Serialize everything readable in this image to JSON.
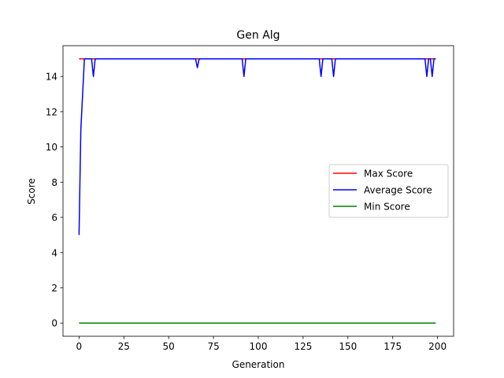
{
  "chart_data": {
    "type": "line",
    "title": "Gen Alg",
    "xlabel": "Generation",
    "ylabel": "Score",
    "xlim": [
      -8.95,
      208.95
    ],
    "ylim": [
      -0.75,
      15.75
    ],
    "xticks": [
      0,
      25,
      50,
      75,
      100,
      125,
      150,
      175,
      200
    ],
    "yticks": [
      0,
      2,
      4,
      6,
      8,
      10,
      12,
      14
    ],
    "grid": false,
    "legend_position": "center-right",
    "series": [
      {
        "name": "Max Score",
        "color": "#ff0000",
        "points": [
          [
            0,
            15
          ],
          [
            199,
            15
          ]
        ]
      },
      {
        "name": "Average Score",
        "color": "#0000ff",
        "points": [
          [
            0,
            5
          ],
          [
            1,
            11
          ],
          [
            2,
            13
          ],
          [
            3,
            15
          ],
          [
            7,
            15
          ],
          [
            8,
            14
          ],
          [
            9,
            15
          ],
          [
            65,
            15
          ],
          [
            66,
            14.5
          ],
          [
            67,
            15
          ],
          [
            91,
            15
          ],
          [
            92,
            14
          ],
          [
            93,
            15
          ],
          [
            134,
            15
          ],
          [
            135,
            14
          ],
          [
            136,
            15
          ],
          [
            141,
            15
          ],
          [
            142,
            14
          ],
          [
            143,
            15
          ],
          [
            193,
            15
          ],
          [
            194,
            14
          ],
          [
            195,
            15
          ],
          [
            196,
            15
          ],
          [
            197,
            14
          ],
          [
            198,
            15
          ],
          [
            199,
            15
          ]
        ]
      },
      {
        "name": "Min Score",
        "color": "#008000",
        "points": [
          [
            0,
            0
          ],
          [
            199,
            0
          ]
        ]
      }
    ]
  }
}
